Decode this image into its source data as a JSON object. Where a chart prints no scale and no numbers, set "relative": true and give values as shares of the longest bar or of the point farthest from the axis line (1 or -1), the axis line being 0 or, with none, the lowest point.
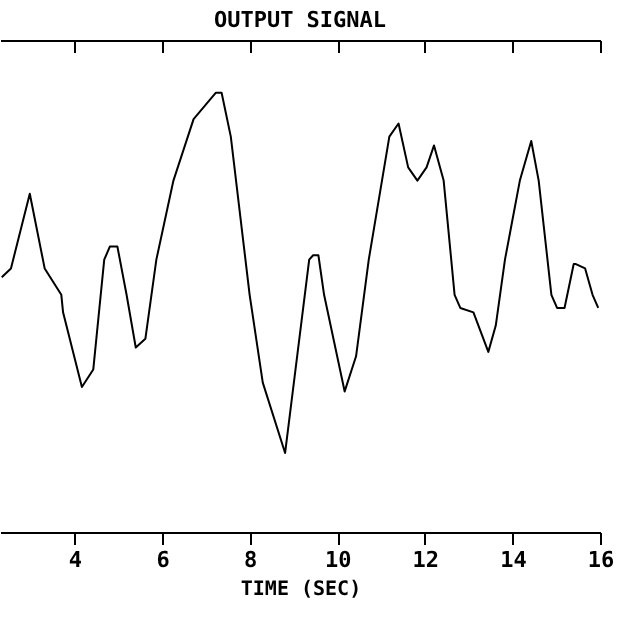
{
  "chart_data": {
    "type": "line",
    "title": "OUTPUT SIGNAL",
    "xlabel": "TIME (SEC)",
    "relative": true,
    "color": "#000000",
    "x": [
      2.34,
      2.55,
      2.98,
      3.32,
      3.7,
      3.74,
      4.17,
      4.43,
      4.68,
      4.81,
      4.98,
      5.19,
      5.4,
      5.62,
      5.87,
      6.26,
      6.72,
      7.23,
      7.36,
      7.57,
      8.0,
      8.3,
      8.81,
      9.36,
      9.45,
      9.57,
      9.7,
      10.17,
      10.43,
      10.72,
      11.19,
      11.4,
      11.62,
      11.83,
      12.04,
      12.21,
      12.43,
      12.68,
      12.81,
      13.11,
      13.45,
      13.62,
      13.83,
      14.17,
      14.43,
      14.6,
      14.89,
      15.02,
      15.19,
      15.4,
      15.45,
      15.66,
      15.83,
      15.96
    ],
    "values": [
      0.58,
      0.6,
      0.77,
      0.6,
      0.54,
      0.5,
      0.33,
      0.37,
      0.62,
      0.65,
      0.65,
      0.54,
      0.42,
      0.44,
      0.62,
      0.8,
      0.94,
      1.0,
      1.0,
      0.9,
      0.54,
      0.34,
      0.18,
      0.62,
      0.63,
      0.63,
      0.54,
      0.32,
      0.4,
      0.62,
      0.9,
      0.93,
      0.83,
      0.8,
      0.83,
      0.88,
      0.8,
      0.54,
      0.51,
      0.5,
      0.41,
      0.47,
      0.62,
      0.8,
      0.89,
      0.8,
      0.54,
      0.51,
      0.51,
      0.61,
      0.61,
      0.6,
      0.54,
      0.51
    ],
    "xlim": [
      2.3,
      16
    ],
    "xticks": [
      4,
      6,
      8,
      10,
      12,
      14,
      16
    ],
    "line_style": "solid"
  }
}
